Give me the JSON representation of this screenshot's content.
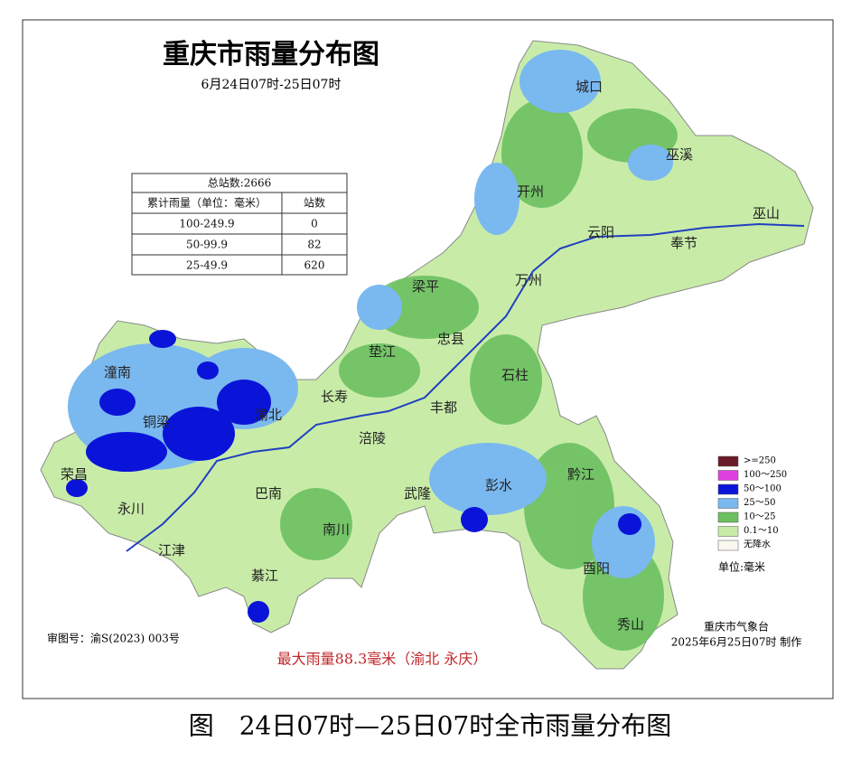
{
  "header": {
    "title": "重庆市雨量分布图",
    "subtitle": "6月24日07时-25日07时"
  },
  "table": {
    "total": "总站数:2666",
    "headers": [
      "累计雨量（单位：毫米）",
      "站数"
    ],
    "rows": [
      [
        "100-249.9",
        "0"
      ],
      [
        "50-99.9",
        "82"
      ],
      [
        "25-49.9",
        "620"
      ]
    ]
  },
  "legend": {
    "items": [
      {
        "label": ">=250",
        "color": "#6b1a2a"
      },
      {
        "label": "100～250",
        "color": "#e040e0"
      },
      {
        "label": "50～100",
        "color": "#0a14d8"
      },
      {
        "label": "25～50",
        "color": "#7ab8f0"
      },
      {
        "label": "10～25",
        "color": "#6cc060"
      },
      {
        "label": "0.1～10",
        "color": "#c8eca8"
      },
      {
        "label": "无降水",
        "color": "#f8f8f0"
      }
    ],
    "unit": "单位:毫米"
  },
  "labels": [
    "城口",
    "巫溪",
    "开州",
    "云阳",
    "奉节",
    "巫山",
    "梁平",
    "万州",
    "垫江",
    "忠县",
    "长寿",
    "石柱",
    "丰都",
    "涪陵",
    "潼南",
    "铜梁",
    "永川",
    "江津",
    "巴南",
    "南川",
    "綦江",
    "武隆",
    "彭水",
    "黔江",
    "酉阳",
    "秀山",
    "荣昌",
    "渝北"
  ],
  "footer": {
    "approval": "审图号：渝S(2023) 003号",
    "max_rain": "最大雨量88.3毫米（渝北 永庆）",
    "agency": "重庆市气象台",
    "made": "2025年6月25日07时 制作"
  },
  "caption": "图　24日07时—25日07时全市雨量分布图"
}
